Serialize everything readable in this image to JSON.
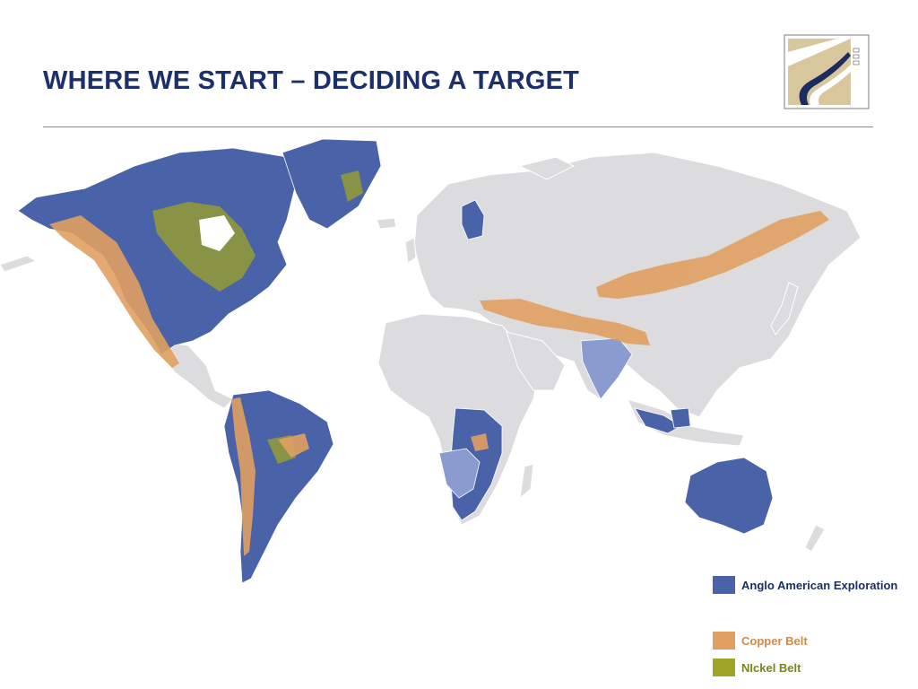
{
  "slide": {
    "title": "WHERE WE START – DECIDING A TARGET"
  },
  "map": {
    "base_color": "#dcdcde",
    "border_color": "#ffffff"
  },
  "legend": {
    "items": [
      {
        "label": "Anglo American Exploration",
        "color": "#4a62a8",
        "text_color": "#1d2f63"
      },
      {
        "label": "Copper Belt",
        "color": "#e0a061",
        "text_color": "#d08a4c"
      },
      {
        "label": "NIckel Belt",
        "color": "#9ea425",
        "text_color": "#7b8220"
      }
    ]
  },
  "colors": {
    "title": "#1b2f6b",
    "exploration": "#4a62a8",
    "exploration_light": "#8a9bd0",
    "copper": "#e0a061",
    "nickel": "#9ea425"
  }
}
